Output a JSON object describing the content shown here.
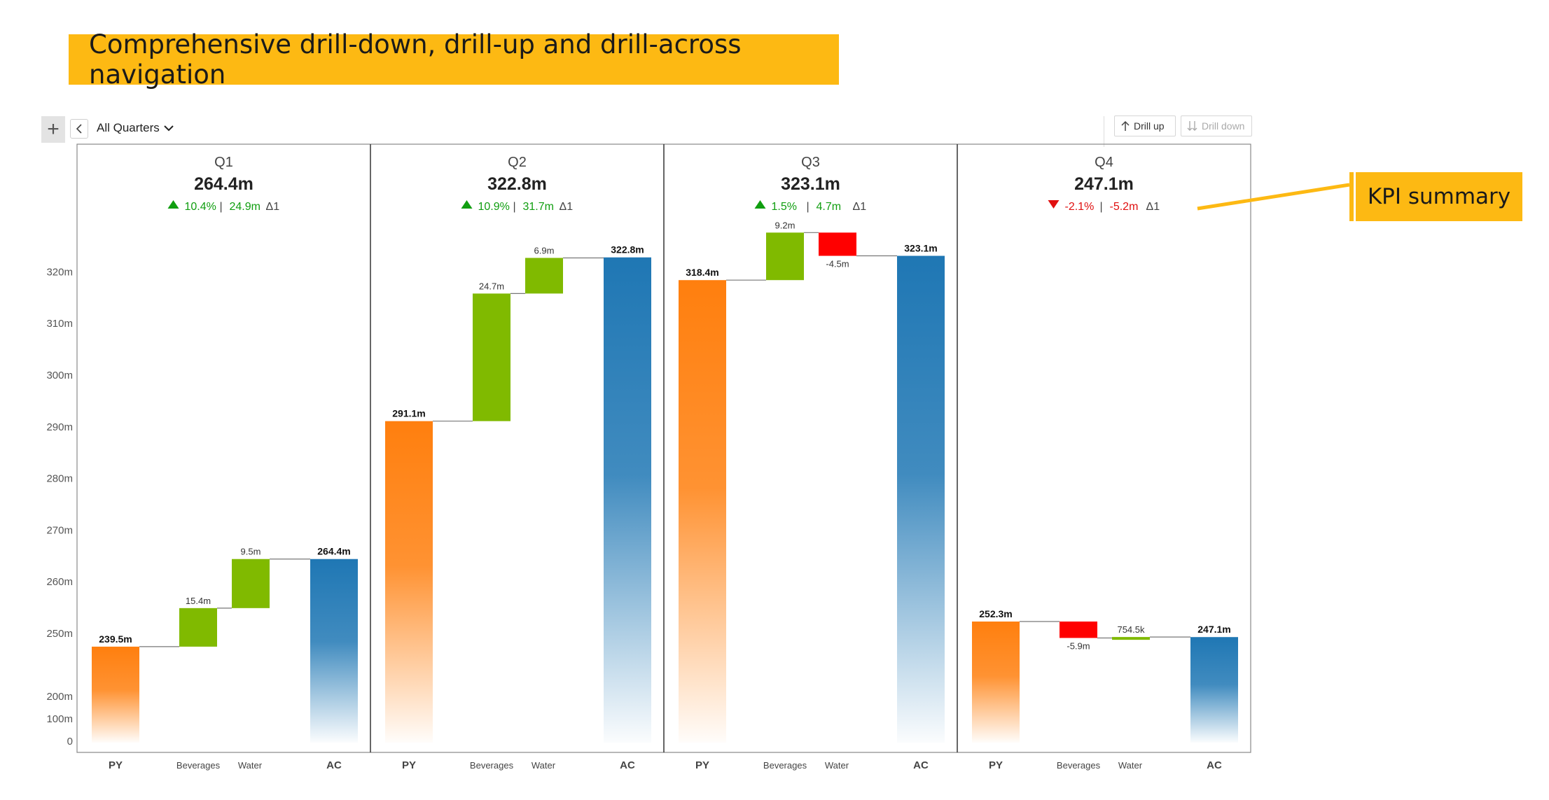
{
  "banner": {
    "title": "Comprehensive drill-down, drill-up and drill-across navigation"
  },
  "toolbar": {
    "add_symbol": "+",
    "back_symbol": "<",
    "quarter_filter": "All Quarters",
    "drill_up_label": "Drill up",
    "drill_down_label": "Drill down"
  },
  "callout": {
    "label": "KPI summary"
  },
  "colors": {
    "py": "#FF7F0E",
    "ac": "#1F77B4",
    "positive": "#80BA00",
    "negative": "#FF0000",
    "kpi_up": "#109E10",
    "kpi_down": "#E01010",
    "banner": "#FDB913"
  },
  "chart_data": {
    "type": "bar",
    "subtype": "waterfall",
    "categories": [
      "PY",
      "Beverages",
      "Water",
      "AC"
    ],
    "y_axis": {
      "ticks": [
        "320m",
        "310m",
        "300m",
        "290m",
        "280m",
        "270m",
        "260m",
        "250m",
        "200m",
        "100m",
        "0"
      ],
      "broken": true,
      "range": [
        0,
        326
      ]
    },
    "panels": [
      {
        "name": "Q1",
        "total": "264.4m",
        "kpi": {
          "direction": "up",
          "pct": "10.4%",
          "abs": "24.9m",
          "delta": "Δ1"
        },
        "values": [
          239.5,
          15.4,
          9.5,
          264.4
        ],
        "labels": [
          "239.5m",
          "15.4m",
          "9.5m",
          "264.4m"
        ]
      },
      {
        "name": "Q2",
        "total": "322.8m",
        "kpi": {
          "direction": "up",
          "pct": "10.9%",
          "abs": "31.7m",
          "delta": "Δ1"
        },
        "values": [
          291.1,
          24.7,
          6.9,
          322.8
        ],
        "labels": [
          "291.1m",
          "24.7m",
          "6.9m",
          "322.8m"
        ]
      },
      {
        "name": "Q3",
        "total": "323.1m",
        "kpi": {
          "direction": "up",
          "pct": "1.5%",
          "abs": "4.7m",
          "delta": "Δ1"
        },
        "values": [
          318.4,
          9.2,
          -4.5,
          323.1
        ],
        "labels": [
          "318.4m",
          "9.2m",
          "-4.5m",
          "323.1m"
        ]
      },
      {
        "name": "Q4",
        "total": "247.1m",
        "kpi": {
          "direction": "down",
          "pct": "-2.1%",
          "abs": "-5.2m",
          "delta": "Δ1"
        },
        "values": [
          252.3,
          -5.9,
          0.7545,
          247.1
        ],
        "labels": [
          "252.3m",
          "-5.9m",
          "754.5k",
          "247.1m"
        ]
      }
    ]
  }
}
